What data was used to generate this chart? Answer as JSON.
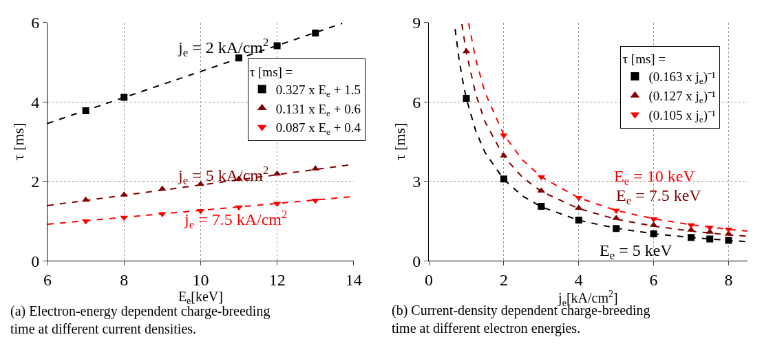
{
  "chart_data": [
    {
      "type": "scatter",
      "xlabel": "E$_{e}$[keV]",
      "ylabel": "τ [ms]",
      "legend_title": "τ [ms] =",
      "legend": "right",
      "grid": true,
      "xlim": [
        6,
        14
      ],
      "xticks": [
        6,
        8,
        10,
        12,
        14
      ],
      "ylim": [
        0,
        6
      ],
      "yticks": [
        0,
        2,
        4,
        6
      ],
      "series": [
        {
          "name": "0.327 x E$_{e}$ + 1.5",
          "color": "#000000",
          "marker": "square",
          "x": [
            7,
            8,
            11,
            12,
            13
          ],
          "values": [
            3.78,
            4.12,
            5.11,
            5.42,
            5.74
          ]
        },
        {
          "name": "0.131 x E$_{e}$ + 0.6",
          "color": "#800000",
          "marker": "triangle",
          "x": [
            7,
            8,
            9,
            10,
            11,
            12,
            13
          ],
          "values": [
            1.53,
            1.66,
            1.81,
            1.93,
            2.06,
            2.19,
            2.32
          ]
        },
        {
          "name": "0.087 x E$_{e}$ + 0.4",
          "color": "#ff0000",
          "marker": "triangle-down",
          "x": [
            7,
            8,
            9,
            10,
            11,
            12,
            13
          ],
          "values": [
            1.0,
            1.09,
            1.18,
            1.26,
            1.35,
            1.44,
            1.52
          ]
        },
        {
          "type": "line",
          "color": "#000000",
          "line_style": "dashed",
          "marker": "none",
          "x": [
            6,
            13.7
          ],
          "values": [
            3.46,
            5.98
          ]
        },
        {
          "type": "line",
          "color": "#800000",
          "line_style": "dashed",
          "marker": "none",
          "x": [
            6,
            14
          ],
          "values": [
            1.39,
            2.43
          ]
        },
        {
          "type": "line",
          "color": "#ff0000",
          "line_style": "dashed",
          "marker": "none",
          "x": [
            6,
            14
          ],
          "values": [
            0.92,
            1.62
          ]
        }
      ],
      "annotations": [
        "j$_{e}$ = 2 kA/cm$^{2}$",
        "j$_{e}$ = 5 kA/cm$^{2}$",
        "j$_{e}$ = 7.5 kA/cm$^{2}$",
        "(a) Electron-energy dependent charge-breeding\ntime at different current densities."
      ]
    },
    {
      "type": "scatter",
      "xlabel": "j$_{e}$[kA/cm$^{2}$]",
      "ylabel": "τ [ms]",
      "legend_title": "τ [ms] =",
      "legend": "top right",
      "grid": true,
      "xlim": [
        0,
        8.5
      ],
      "xticks": [
        0,
        2,
        4,
        6,
        8
      ],
      "ylim": [
        0,
        9
      ],
      "yticks": [
        0,
        3,
        6,
        9
      ],
      "series": [
        {
          "name": "(0.163 x j$_{e}$)⁻¹",
          "color": "#000000",
          "marker": "square",
          "x": [
            1,
            2,
            3,
            4,
            5,
            6,
            7,
            7.5,
            8
          ],
          "values": [
            6.14,
            3.09,
            2.06,
            1.54,
            1.22,
            1.02,
            0.88,
            0.82,
            0.77
          ]
        },
        {
          "name": "(0.127 x j$_{e}$)⁻¹",
          "color": "#800000",
          "marker": "triangle",
          "x": [
            1,
            2,
            3,
            4,
            5,
            6,
            7,
            7.5,
            8
          ],
          "values": [
            7.91,
            3.97,
            2.64,
            1.99,
            1.61,
            1.35,
            1.17,
            1.09,
            1.02
          ]
        },
        {
          "name": "(0.105 x j$_{e}$)⁻¹",
          "color": "#ff0000",
          "marker": "triangle-down",
          "x": [
            2,
            3,
            4,
            5,
            6,
            7,
            7.5,
            8
          ],
          "values": [
            4.74,
            3.17,
            2.38,
            1.9,
            1.58,
            1.35,
            1.26,
            1.19
          ]
        },
        {
          "type": "line",
          "color": "#000000",
          "line_style": "dashed",
          "marker": "none",
          "x": [
            0.7,
            0.8,
            0.9,
            1,
            1.25,
            1.5,
            2,
            2.5,
            3,
            4,
            5,
            6,
            7,
            8,
            8.5
          ],
          "values": [
            8.76,
            7.67,
            6.82,
            6.13,
            4.91,
            4.09,
            3.07,
            2.45,
            2.04,
            1.53,
            1.23,
            1.02,
            0.88,
            0.77,
            0.72
          ]
        },
        {
          "type": "line",
          "color": "#800000",
          "line_style": "dashed",
          "marker": "none",
          "x": [
            0.88,
            1,
            1.25,
            1.5,
            2,
            2.5,
            3,
            4,
            5,
            6,
            7,
            8,
            8.5
          ],
          "values": [
            8.95,
            7.87,
            6.3,
            5.25,
            3.94,
            3.15,
            2.62,
            1.97,
            1.57,
            1.31,
            1.12,
            0.98,
            0.93
          ]
        },
        {
          "type": "line",
          "color": "#ff0000",
          "line_style": "dashed",
          "marker": "none",
          "x": [
            1.06,
            1.25,
            1.5,
            2,
            2.5,
            3,
            4,
            5,
            6,
            7,
            8,
            8.5
          ],
          "values": [
            8.98,
            7.62,
            6.35,
            4.76,
            3.81,
            3.17,
            2.38,
            1.9,
            1.59,
            1.36,
            1.19,
            1.12
          ]
        }
      ],
      "annotations": [
        "E$_{e}$ = 5 keV",
        "E$_{e}$ = 7.5 keV",
        "E$_{e}$ = 10 keV",
        "(b) Current-density dependent charge-breeding\ntime at different electron energies."
      ]
    }
  ]
}
